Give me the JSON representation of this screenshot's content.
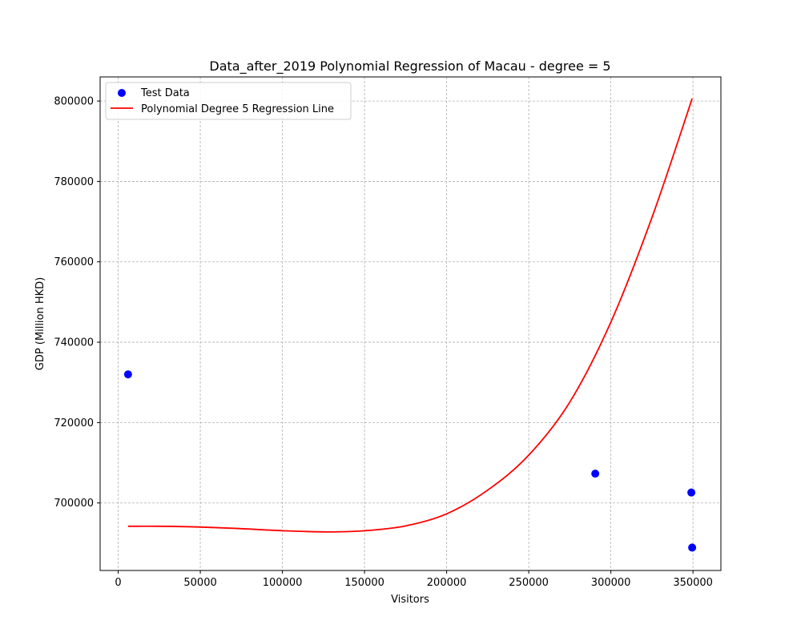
{
  "chart_data": {
    "type": "scatter",
    "title": "Data_after_2019 Polynomial Regression of Macau - degree = 5",
    "xlabel": "Visitors",
    "ylabel": "GDP (Million HKD)",
    "xlim": [
      -11000,
      367000
    ],
    "ylim": [
      683200,
      806000
    ],
    "x_ticks": [
      0,
      50000,
      100000,
      150000,
      200000,
      250000,
      300000,
      350000
    ],
    "y_ticks": [
      700000,
      720000,
      740000,
      760000,
      780000,
      800000
    ],
    "grid": true,
    "legend_position": "top-left",
    "series": [
      {
        "name": "Test Data",
        "kind": "scatter",
        "color": "#0000ff",
        "points": [
          {
            "x": 6000,
            "y": 732000
          },
          {
            "x": 290500,
            "y": 707300
          },
          {
            "x": 349000,
            "y": 702600
          },
          {
            "x": 349500,
            "y": 688900
          }
        ]
      },
      {
        "name": "Polynomial Degree 5 Regression Line",
        "kind": "line",
        "color": "#ff0000",
        "points": [
          {
            "x": 6000,
            "y": 694200
          },
          {
            "x": 25000,
            "y": 694200
          },
          {
            "x": 50000,
            "y": 694000
          },
          {
            "x": 75000,
            "y": 693600
          },
          {
            "x": 100000,
            "y": 693100
          },
          {
            "x": 127000,
            "y": 692800
          },
          {
            "x": 150000,
            "y": 693100
          },
          {
            "x": 175000,
            "y": 694300
          },
          {
            "x": 200000,
            "y": 697300
          },
          {
            "x": 225000,
            "y": 703200
          },
          {
            "x": 250000,
            "y": 711900
          },
          {
            "x": 275000,
            "y": 725100
          },
          {
            "x": 300000,
            "y": 745000
          },
          {
            "x": 325000,
            "y": 771000
          },
          {
            "x": 349500,
            "y": 800600
          }
        ]
      }
    ]
  }
}
